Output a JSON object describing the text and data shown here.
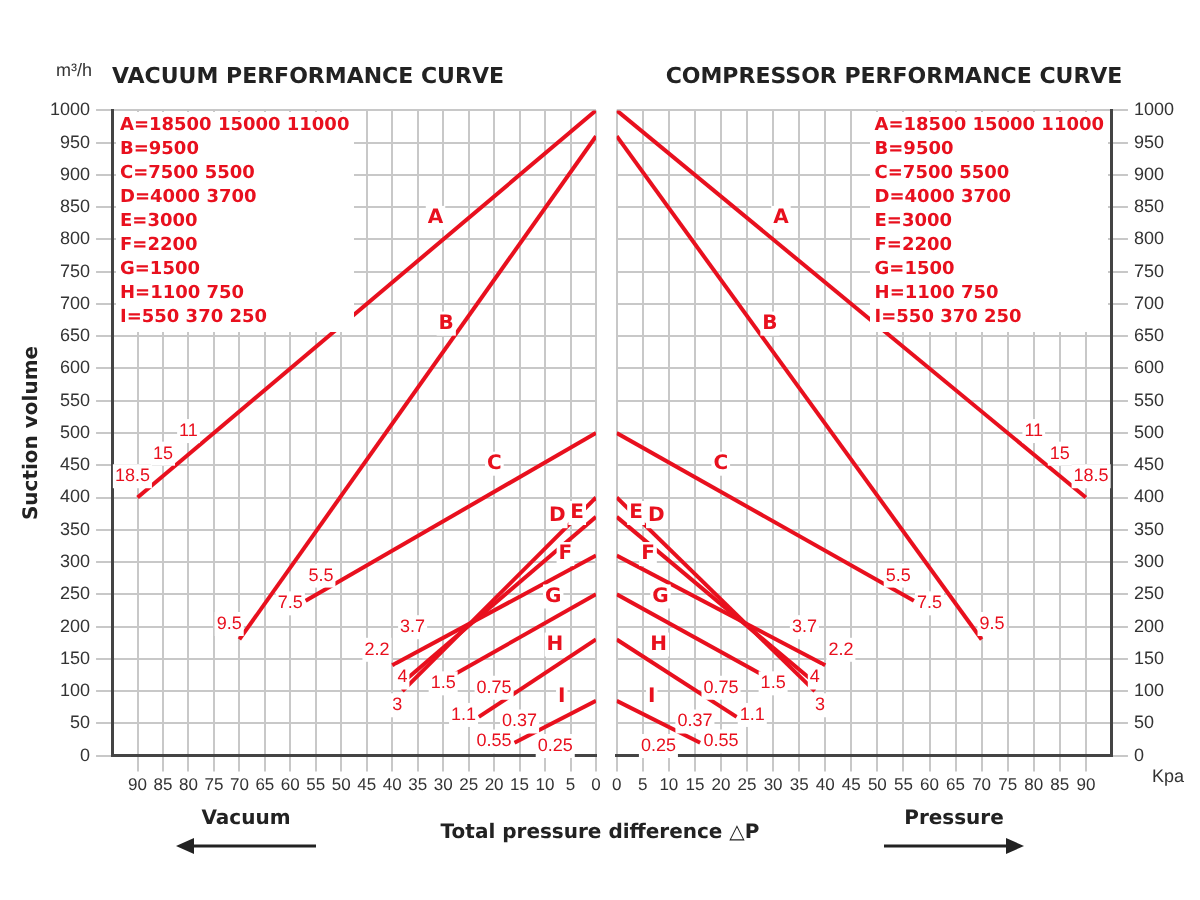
{
  "chart_data": [
    {
      "type": "line",
      "title": "VACUUM PERFORMANCE CURVE",
      "ylabel": "Suction volume",
      "xlabel": "Total pressure difference △P",
      "xlim": [
        95,
        0
      ],
      "xticks": [
        90,
        85,
        80,
        75,
        70,
        65,
        60,
        55,
        50,
        45,
        40,
        35,
        30,
        25,
        20,
        15,
        10,
        5,
        0
      ],
      "ylim": [
        0,
        1000
      ],
      "yticks": [
        0,
        50,
        100,
        150,
        200,
        250,
        300,
        350,
        400,
        450,
        500,
        550,
        600,
        650,
        700,
        750,
        800,
        850,
        900,
        950,
        1000
      ],
      "grid": true,
      "legend": false,
      "line_style": "solid",
      "series": [
        {
          "name": "A",
          "color": "#e8101e",
          "x": [
            90,
            0
          ],
          "values": [
            400,
            1000
          ]
        },
        {
          "name": "B",
          "color": "#e8101e",
          "x": [
            70,
            0
          ],
          "values": [
            180,
            960
          ]
        },
        {
          "name": "C",
          "color": "#e8101e",
          "x": [
            57,
            0
          ],
          "values": [
            240,
            500
          ]
        },
        {
          "name": "D",
          "color": "#e8101e",
          "x": [
            38,
            0
          ],
          "values": [
            100,
            400
          ]
        },
        {
          "name": "E",
          "color": "#e8101e",
          "x": [
            37,
            0
          ],
          "values": [
            120,
            370
          ]
        },
        {
          "name": "F",
          "color": "#e8101e",
          "x": [
            40,
            0
          ],
          "values": [
            140,
            310
          ]
        },
        {
          "name": "G",
          "color": "#e8101e",
          "x": [
            28,
            0
          ],
          "values": [
            125,
            250
          ]
        },
        {
          "name": "H",
          "color": "#e8101e",
          "x": [
            23,
            0
          ],
          "values": [
            60,
            180
          ]
        },
        {
          "name": "I",
          "color": "#e8101e",
          "x": [
            16,
            0
          ],
          "values": [
            20,
            85
          ]
        }
      ],
      "annotations": [
        "m³/h",
        "Vacuum",
        "A=18500 15000 11000",
        "B=9500",
        "C=7500 5500",
        "D=4000 3700",
        "E=3000",
        "F=2200",
        "G=1500",
        "H=1100 750",
        "I=550 370 250",
        {
          "text": "11",
          "x": 80,
          "y": 503
        },
        {
          "text": "15",
          "x": 85,
          "y": 468
        },
        {
          "text": "18.5",
          "x": 91,
          "y": 433
        },
        {
          "text": "5.5",
          "x": 54,
          "y": 279
        },
        {
          "text": "7.5",
          "x": 60,
          "y": 236
        },
        {
          "text": "9.5",
          "x": 72,
          "y": 204
        },
        {
          "text": "3.7",
          "x": 36,
          "y": 199
        },
        {
          "text": "2.2",
          "x": 43,
          "y": 164
        },
        {
          "text": "4",
          "x": 38,
          "y": 121
        },
        {
          "text": "3",
          "x": 39,
          "y": 78
        },
        {
          "text": "1.5",
          "x": 30,
          "y": 112
        },
        {
          "text": "0.75",
          "x": 20,
          "y": 105
        },
        {
          "text": "1.1",
          "x": 26,
          "y": 63
        },
        {
          "text": "0.37",
          "x": 15,
          "y": 53
        },
        {
          "text": "0.55",
          "x": 20,
          "y": 22
        },
        {
          "text": "0.25",
          "x": 8,
          "y": 15
        }
      ]
    },
    {
      "type": "line",
      "title": "COMPRESSOR PERFORMANCE CURVE",
      "xlabel": "Kpa",
      "xlim": [
        0,
        95
      ],
      "xticks": [
        0,
        5,
        10,
        15,
        20,
        25,
        30,
        35,
        40,
        45,
        50,
        55,
        60,
        65,
        70,
        75,
        80,
        85,
        90
      ],
      "ylim": [
        0,
        1000
      ],
      "yticks": [
        0,
        50,
        100,
        150,
        200,
        250,
        300,
        350,
        400,
        450,
        500,
        550,
        600,
        650,
        700,
        750,
        800,
        850,
        900,
        950,
        1000
      ],
      "grid": true,
      "legend": false,
      "line_style": "solid",
      "series": [
        {
          "name": "A",
          "color": "#e8101e",
          "x": [
            0,
            90
          ],
          "values": [
            1000,
            400
          ]
        },
        {
          "name": "B",
          "color": "#e8101e",
          "x": [
            0,
            70
          ],
          "values": [
            960,
            180
          ]
        },
        {
          "name": "C",
          "color": "#e8101e",
          "x": [
            0,
            57
          ],
          "values": [
            500,
            240
          ]
        },
        {
          "name": "D",
          "color": "#e8101e",
          "x": [
            0,
            38
          ],
          "values": [
            400,
            100
          ]
        },
        {
          "name": "E",
          "color": "#e8101e",
          "x": [
            0,
            37
          ],
          "values": [
            370,
            120
          ]
        },
        {
          "name": "F",
          "color": "#e8101e",
          "x": [
            0,
            40
          ],
          "values": [
            310,
            140
          ]
        },
        {
          "name": "G",
          "color": "#e8101e",
          "x": [
            0,
            28
          ],
          "values": [
            250,
            125
          ]
        },
        {
          "name": "H",
          "color": "#e8101e",
          "x": [
            0,
            23
          ],
          "values": [
            180,
            60
          ]
        },
        {
          "name": "I",
          "color": "#e8101e",
          "x": [
            0,
            16
          ],
          "values": [
            85,
            20
          ]
        }
      ],
      "annotations": [
        "Pressure",
        "A=18500 15000 11000",
        "B=9500",
        "C=7500 5500",
        "D=4000 3700",
        "E=3000",
        "F=2200",
        "G=1500",
        "H=1100 750",
        "I=550 370 250",
        {
          "text": "11",
          "x": 80,
          "y": 503
        },
        {
          "text": "15",
          "x": 85,
          "y": 468
        },
        {
          "text": "18.5",
          "x": 91,
          "y": 433
        },
        {
          "text": "5.5",
          "x": 54,
          "y": 279
        },
        {
          "text": "7.5",
          "x": 60,
          "y": 236
        },
        {
          "text": "9.5",
          "x": 72,
          "y": 204
        },
        {
          "text": "3.7",
          "x": 36,
          "y": 199
        },
        {
          "text": "2.2",
          "x": 43,
          "y": 164
        },
        {
          "text": "4",
          "x": 38,
          "y": 121
        },
        {
          "text": "3",
          "x": 39,
          "y": 78
        },
        {
          "text": "1.5",
          "x": 30,
          "y": 112
        },
        {
          "text": "0.75",
          "x": 20,
          "y": 105
        },
        {
          "text": "1.1",
          "x": 26,
          "y": 63
        },
        {
          "text": "0.37",
          "x": 15,
          "y": 53
        },
        {
          "text": "0.55",
          "x": 20,
          "y": 22
        },
        {
          "text": "0.25",
          "x": 8,
          "y": 15
        }
      ]
    }
  ]
}
